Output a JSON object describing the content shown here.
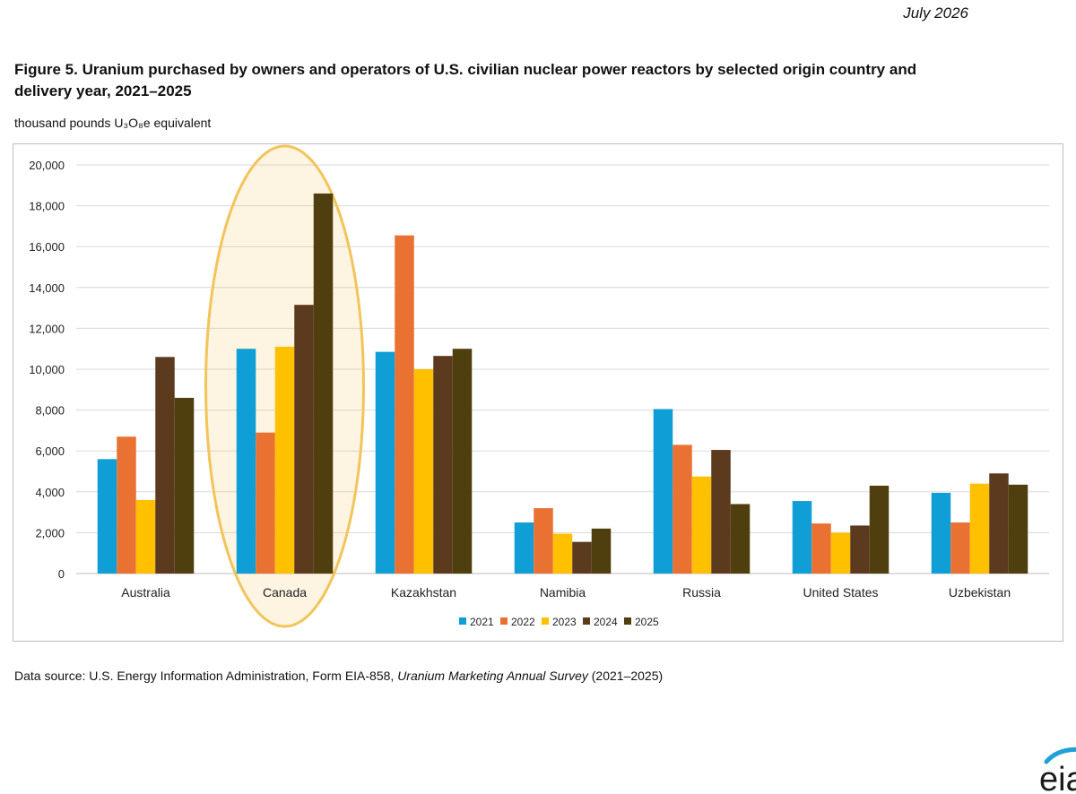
{
  "header": {
    "date": "July 2026",
    "title": "Figure 5. Uranium purchased by owners and operators of U.S. civilian nuclear power reactors by selected origin country and delivery year, 2021–2025",
    "units": "thousand pounds U₃O₈e equivalent"
  },
  "footer": {
    "source_prefix": "Data source: U.S. Energy Information Administration, Form EIA-858,",
    "source_title": "Uranium Marketing Annual Survey",
    "source_suffix": "(2021–2025)"
  },
  "logo": {
    "text": "eia",
    "icon": "eia-logo-icon"
  },
  "chart_data": {
    "type": "bar",
    "categories": [
      "Australia",
      "Canada",
      "Kazakhstan",
      "Namibia",
      "Russia",
      "United States",
      "Uzbekistan"
    ],
    "series": [
      {
        "name": "2021",
        "color": "#0F9ED5",
        "values": [
          5600,
          11000,
          10850,
          2500,
          8050,
          3550,
          3950
        ]
      },
      {
        "name": "2022",
        "color": "#E97132",
        "values": [
          6700,
          6900,
          16550,
          3200,
          6300,
          2450,
          2500
        ]
      },
      {
        "name": "2023",
        "color": "#FFC000",
        "values": [
          3600,
          11100,
          10000,
          1950,
          4750,
          2000,
          4400
        ]
      },
      {
        "name": "2024",
        "color": "#5B3A1E",
        "values": [
          10600,
          13150,
          10650,
          1550,
          6050,
          2350,
          4900
        ]
      },
      {
        "name": "2025",
        "color": "#4F3E0E",
        "values": [
          8600,
          18600,
          11000,
          2200,
          3400,
          4300,
          4350
        ]
      }
    ],
    "ylim": [
      0,
      20000
    ],
    "yticks": [
      0,
      2000,
      4000,
      6000,
      8000,
      10000,
      12000,
      14000,
      16000,
      18000,
      20000
    ],
    "ytick_labels": [
      "0",
      "2,000",
      "4,000",
      "6,000",
      "8,000",
      "10,000",
      "12,000",
      "14,000",
      "16,000",
      "18,000",
      "20,000"
    ],
    "grid": true,
    "legend": "bottom",
    "highlight": {
      "category": "Canada",
      "color": "#F2C45A"
    }
  }
}
